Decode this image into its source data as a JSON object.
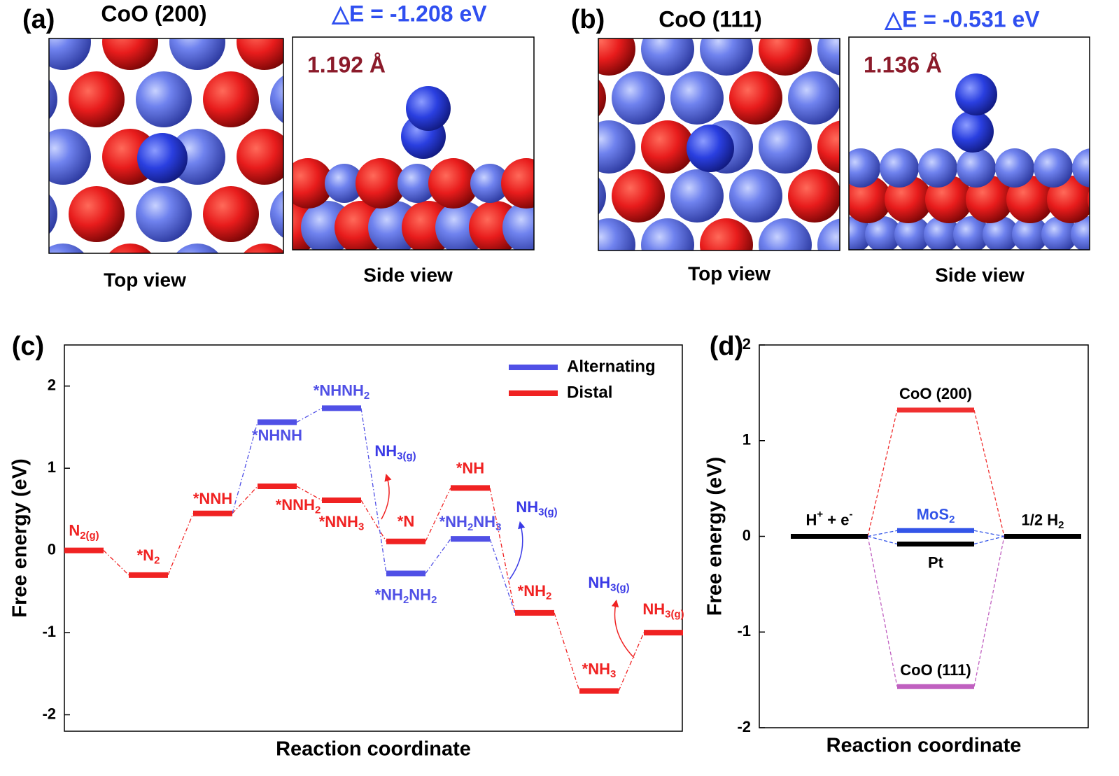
{
  "panels": [
    {
      "letter": "(a)",
      "title": "CoO (200)",
      "energy": "△E = -1.208 eV",
      "distance": "1.192 Å",
      "top_caption": "Top view",
      "side_caption": "Side view"
    },
    {
      "letter": "(b)",
      "title": "CoO (111)",
      "energy": "△E = -0.531 eV",
      "distance": "1.136 Å",
      "top_caption": "Top view",
      "side_caption": "Side view"
    }
  ],
  "chart_data": [
    {
      "type": "energy-diagram",
      "panel": "(c)",
      "ylabel": "Free energy (eV)",
      "xlabel": "Reaction coordinate",
      "ylim": [
        -2.2,
        2.5
      ],
      "yticks": [
        -2,
        -1,
        0,
        1,
        2
      ],
      "legend": "upper right",
      "series": [
        {
          "name": "Alternating",
          "color": "#5050e6",
          "values": [
            null,
            null,
            null,
            1.56,
            1.73,
            -0.28,
            0.14,
            null,
            null,
            null
          ],
          "labels": [
            null,
            null,
            null,
            [
              "*NHNH"
            ],
            [
              "*NHNH",
              "2"
            ],
            [
              "*NH",
              "2",
              "NH",
              "2"
            ],
            [
              "*NH",
              "2",
              "NH",
              "3"
            ],
            null,
            null,
            null
          ]
        },
        {
          "name": "Distal",
          "color": "#f02222",
          "values": [
            0,
            -0.3,
            0.45,
            0.78,
            0.61,
            0.11,
            0.76,
            -0.76,
            -1.71,
            -1.0
          ],
          "labels": [
            [
              "N",
              "2(g)"
            ],
            [
              "*N",
              "2"
            ],
            [
              "*NNH"
            ],
            [
              "*NNH",
              "2"
            ],
            [
              "*NNH",
              "3"
            ],
            [
              "*N"
            ],
            [
              "*NH"
            ],
            [
              "*NH",
              "2"
            ],
            [
              "*NH",
              "3"
            ],
            [
              "NH",
              "3(g)"
            ]
          ]
        }
      ],
      "annotations": [
        {
          "parts": [
            "NH",
            "3(g)"
          ],
          "color": "#3a3ae6"
        },
        {
          "parts": [
            "NH",
            "3(g)"
          ],
          "color": "#3a3ae6"
        },
        {
          "parts": [
            "NH",
            "3(g)"
          ],
          "color": "#3a3ae6"
        }
      ]
    },
    {
      "type": "levels",
      "panel": "(d)",
      "ylabel": "Free energy (eV)",
      "xlabel": "Reaction coordinate",
      "ylim": [
        -2,
        2
      ],
      "yticks": [
        -2,
        -1,
        0,
        1,
        2
      ],
      "levels": [
        {
          "label": [
            "H",
            "+",
            " + e",
            "-"
          ],
          "script": "sup",
          "value": 0,
          "color": "#000000",
          "label_color": "#000000"
        },
        {
          "label": [
            "CoO (200)"
          ],
          "value": 1.32,
          "color": "#f03030",
          "label_color": "#000000"
        },
        {
          "label": [
            "MoS",
            "2"
          ],
          "value": 0.06,
          "color": "#3355e8",
          "label_color": "#3355e8"
        },
        {
          "label": [
            "Pt"
          ],
          "value": -0.08,
          "color": "#000000",
          "label_color": "#000000"
        },
        {
          "label": [
            "CoO (111)"
          ],
          "value": -1.57,
          "color": "#c060c0",
          "label_color": "#000000"
        },
        {
          "label": [
            "1/2 H",
            "2"
          ],
          "value": 0,
          "color": "#000000",
          "label_color": "#000000"
        }
      ]
    }
  ]
}
